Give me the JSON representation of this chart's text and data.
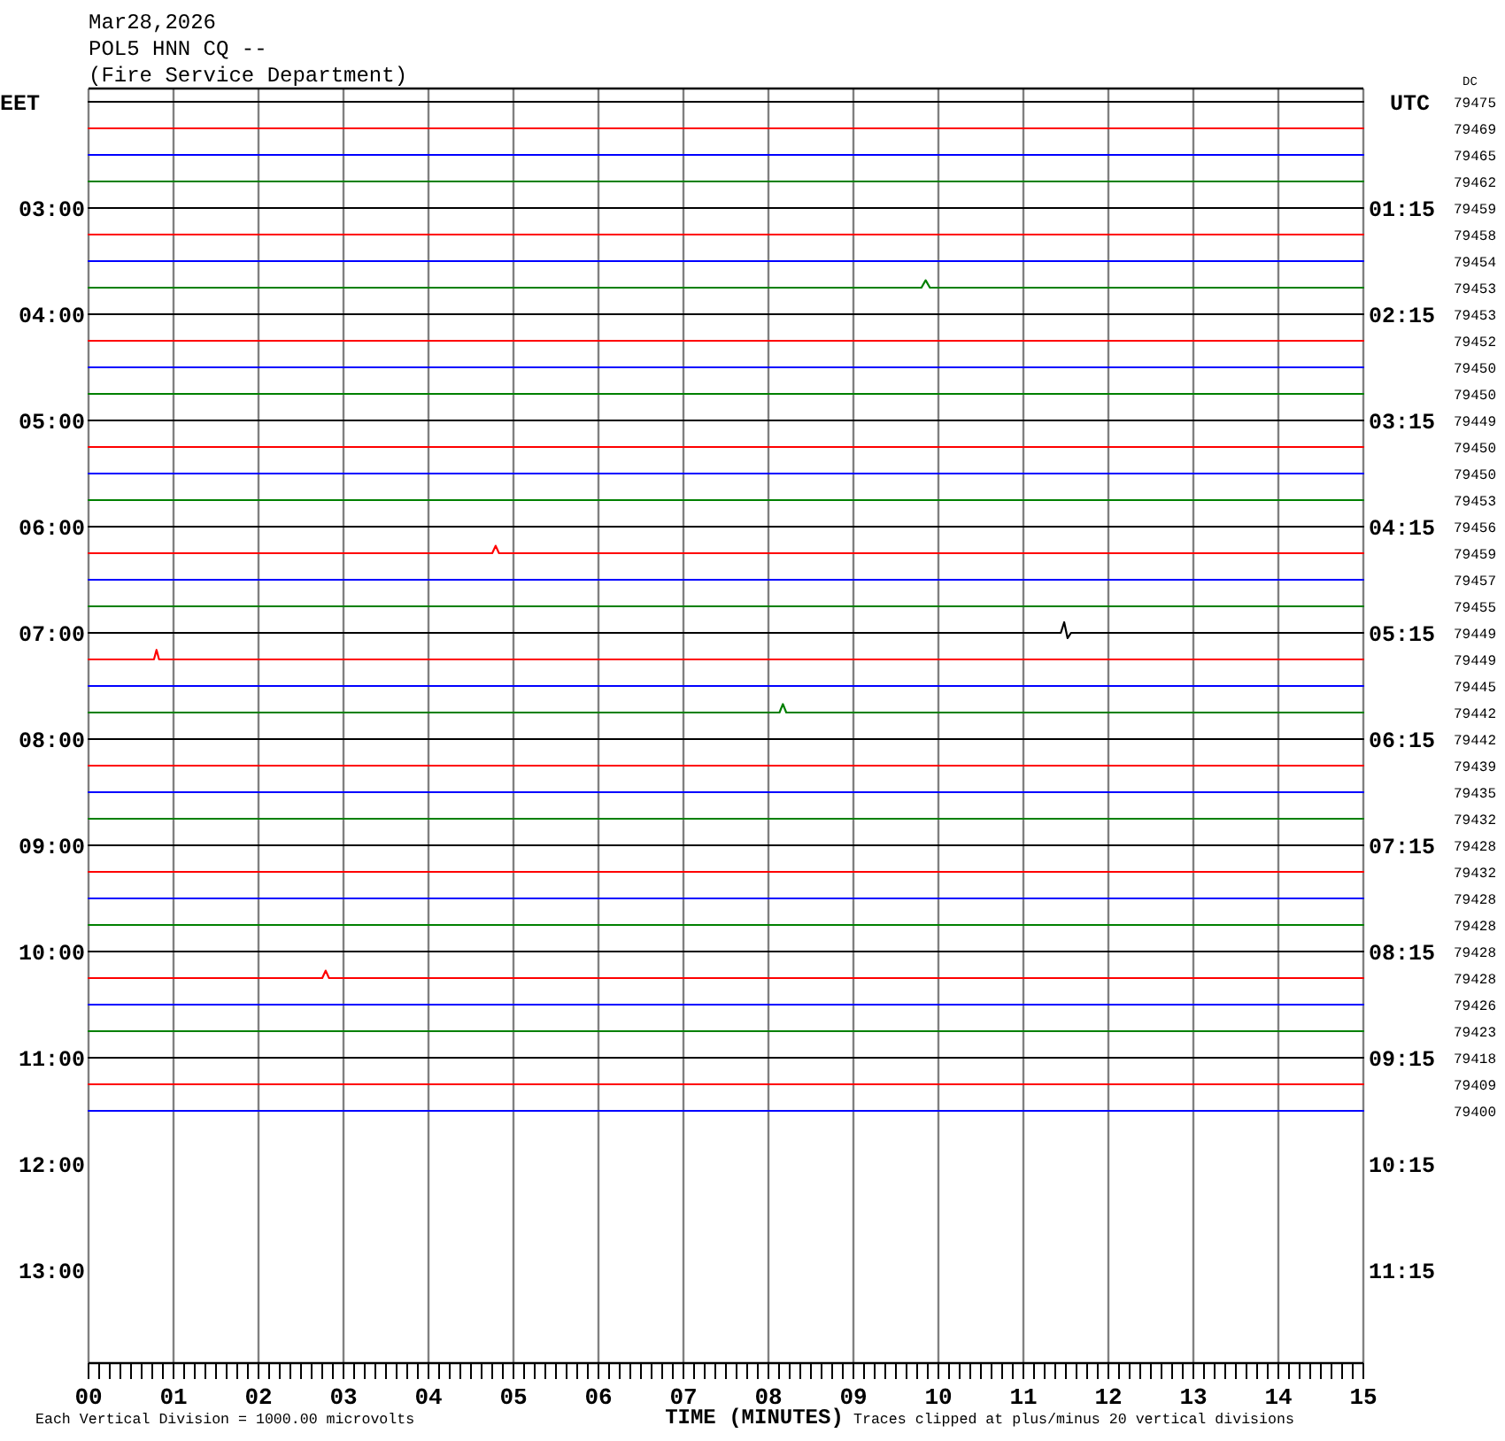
{
  "chart_data": {
    "type": "line",
    "title": "Mar28,2026",
    "subtitle": "POL5 HNN CQ --\n(Fire Service Department)",
    "xlabel": "TIME (MINUTES)",
    "ylabel": "EET",
    "y2label": "UTC",
    "x": [
      0,
      15
    ],
    "xlim": [
      0,
      15
    ],
    "ylim": [
      13.875,
      1.875
    ],
    "y2lim": [
      12.125,
      0.125
    ],
    "grid": "x",
    "xticks": [
      {
        "value": 0,
        "label": "00"
      },
      {
        "value": 0.125,
        "label": null
      },
      {
        "value": 0.25,
        "label": null
      },
      {
        "value": 0.375,
        "label": null
      },
      {
        "value": 0.5,
        "label": null
      },
      {
        "value": 0.625,
        "label": null
      },
      {
        "value": 0.75,
        "label": null
      },
      {
        "value": 0.875,
        "label": null
      },
      {
        "value": 1,
        "label": "01"
      },
      {
        "value": 1.125,
        "label": null
      },
      {
        "value": 1.25,
        "label": null
      },
      {
        "value": 1.375,
        "label": null
      },
      {
        "value": 1.5,
        "label": null
      },
      {
        "value": 1.625,
        "label": null
      },
      {
        "value": 1.75,
        "label": null
      },
      {
        "value": 1.875,
        "label": null
      },
      {
        "value": 2,
        "label": "02"
      },
      {
        "value": 2.125,
        "label": null
      },
      {
        "value": 2.25,
        "label": null
      },
      {
        "value": 2.375,
        "label": null
      },
      {
        "value": 2.5,
        "label": null
      },
      {
        "value": 2.625,
        "label": null
      },
      {
        "value": 2.75,
        "label": null
      },
      {
        "value": 2.875,
        "label": null
      },
      {
        "value": 3,
        "label": "03"
      },
      {
        "value": 3.125,
        "label": null
      },
      {
        "value": 3.25,
        "label": null
      },
      {
        "value": 3.375,
        "label": null
      },
      {
        "value": 3.5,
        "label": null
      },
      {
        "value": 3.625,
        "label": null
      },
      {
        "value": 3.75,
        "label": null
      },
      {
        "value": 3.875,
        "label": null
      },
      {
        "value": 4,
        "label": "04"
      },
      {
        "value": 4.125,
        "label": null
      },
      {
        "value": 4.25,
        "label": null
      },
      {
        "value": 4.375,
        "label": null
      },
      {
        "value": 4.5,
        "label": null
      },
      {
        "value": 4.625,
        "label": null
      },
      {
        "value": 4.75,
        "label": null
      },
      {
        "value": 4.875,
        "label": null
      },
      {
        "value": 5,
        "label": "05"
      },
      {
        "value": 5.125,
        "label": null
      },
      {
        "value": 5.25,
        "label": null
      },
      {
        "value": 5.375,
        "label": null
      },
      {
        "value": 5.5,
        "label": null
      },
      {
        "value": 5.625,
        "label": null
      },
      {
        "value": 5.75,
        "label": null
      },
      {
        "value": 5.875,
        "label": null
      },
      {
        "value": 6,
        "label": "06"
      },
      {
        "value": 6.125,
        "label": null
      },
      {
        "value": 6.25,
        "label": null
      },
      {
        "value": 6.375,
        "label": null
      },
      {
        "value": 6.5,
        "label": null
      },
      {
        "value": 6.625,
        "label": null
      },
      {
        "value": 6.75,
        "label": null
      },
      {
        "value": 6.875,
        "label": null
      },
      {
        "value": 7,
        "label": "07"
      },
      {
        "value": 7.125,
        "label": null
      },
      {
        "value": 7.25,
        "label": null
      },
      {
        "value": 7.375,
        "label": null
      },
      {
        "value": 7.5,
        "label": null
      },
      {
        "value": 7.625,
        "label": null
      },
      {
        "value": 7.75,
        "label": null
      },
      {
        "value": 7.875,
        "label": null
      },
      {
        "value": 8,
        "label": "08"
      },
      {
        "value": 8.125,
        "label": null
      },
      {
        "value": 8.25,
        "label": null
      },
      {
        "value": 8.375,
        "label": null
      },
      {
        "value": 8.5,
        "label": null
      },
      {
        "value": 8.625,
        "label": null
      },
      {
        "value": 8.75,
        "label": null
      },
      {
        "value": 8.875,
        "label": null
      },
      {
        "value": 9,
        "label": "09"
      },
      {
        "value": 9.125,
        "label": null
      },
      {
        "value": 9.25,
        "label": null
      },
      {
        "value": 9.375,
        "label": null
      },
      {
        "value": 9.5,
        "label": null
      },
      {
        "value": 9.625,
        "label": null
      },
      {
        "value": 9.75,
        "label": null
      },
      {
        "value": 9.875,
        "label": null
      },
      {
        "value": 10,
        "label": "10"
      },
      {
        "value": 10.125,
        "label": null
      },
      {
        "value": 10.25,
        "label": null
      },
      {
        "value": 10.375,
        "label": null
      },
      {
        "value": 10.5,
        "label": null
      },
      {
        "value": 10.625,
        "label": null
      },
      {
        "value": 10.75,
        "label": null
      },
      {
        "value": 10.875,
        "label": null
      },
      {
        "value": 11,
        "label": "11"
      },
      {
        "value": 11.125,
        "label": null
      },
      {
        "value": 11.25,
        "label": null
      },
      {
        "value": 11.375,
        "label": null
      },
      {
        "value": 11.5,
        "label": null
      },
      {
        "value": 11.625,
        "label": null
      },
      {
        "value": 11.75,
        "label": null
      },
      {
        "value": 11.875,
        "label": null
      },
      {
        "value": 12,
        "label": "12"
      },
      {
        "value": 12.125,
        "label": null
      },
      {
        "value": 12.25,
        "label": null
      },
      {
        "value": 12.375,
        "label": null
      },
      {
        "value": 12.5,
        "label": null
      },
      {
        "value": 12.625,
        "label": null
      },
      {
        "value": 12.75,
        "label": null
      },
      {
        "value": 12.875,
        "label": null
      },
      {
        "value": 13,
        "label": "13"
      },
      {
        "value": 13.125,
        "label": null
      },
      {
        "value": 13.25,
        "label": null
      },
      {
        "value": 13.375,
        "label": null
      },
      {
        "value": 13.5,
        "label": null
      },
      {
        "value": 13.625,
        "label": null
      },
      {
        "value": 13.75,
        "label": null
      },
      {
        "value": 13.875,
        "label": null
      },
      {
        "value": 14,
        "label": "14"
      },
      {
        "value": 14.125,
        "label": null
      },
      {
        "value": 14.25,
        "label": null
      },
      {
        "value": 14.375,
        "label": null
      },
      {
        "value": 14.5,
        "label": null
      },
      {
        "value": 14.625,
        "label": null
      },
      {
        "value": 14.75,
        "label": null
      },
      {
        "value": 14.875,
        "label": null
      },
      {
        "value": 15,
        "label": "15"
      }
    ],
    "yticks": [
      {
        "value": 3,
        "label": "03:00"
      },
      {
        "value": 4,
        "label": "04:00"
      },
      {
        "value": 5,
        "label": "05:00"
      },
      {
        "value": 6,
        "label": "06:00"
      },
      {
        "value": 7,
        "label": "07:00"
      },
      {
        "value": 8,
        "label": "08:00"
      },
      {
        "value": 9,
        "label": "09:00"
      },
      {
        "value": 10,
        "label": "10:00"
      },
      {
        "value": 11,
        "label": "11:00"
      },
      {
        "value": 12,
        "label": "12:00"
      },
      {
        "value": 13,
        "label": "13:00"
      }
    ],
    "y2ticks": [
      {
        "value": 1.25,
        "label": "01:15"
      },
      {
        "value": 2.25,
        "label": "02:15"
      },
      {
        "value": 3.25,
        "label": "03:15"
      },
      {
        "value": 4.25,
        "label": "04:15"
      },
      {
        "value": 5.25,
        "label": "05:15"
      },
      {
        "value": 6.25,
        "label": "06:15"
      },
      {
        "value": 7.25,
        "label": "07:15"
      },
      {
        "value": 8.25,
        "label": "08:15"
      },
      {
        "value": 9.25,
        "label": "09:15"
      },
      {
        "value": 10.25,
        "label": "10:15"
      },
      {
        "value": 11.25,
        "label": "11:15"
      }
    ],
    "series": [
      {
        "color": "#000000",
        "values": [
          2,
          2
        ]
      },
      {
        "color": "#ff0000",
        "values": [
          2.25,
          2.25
        ]
      },
      {
        "color": "#0000ff",
        "values": [
          2.5,
          2.5
        ]
      },
      {
        "color": "#008000",
        "values": [
          2.75,
          2.75
        ]
      },
      {
        "color": "#000000",
        "values": [
          3,
          3
        ]
      },
      {
        "color": "#ff0000",
        "values": [
          3.25,
          3.25
        ]
      },
      {
        "color": "#0000ff",
        "values": [
          3.5,
          3.5
        ]
      },
      {
        "color": "#008000",
        "x": [
          0,
          9.8,
          9.85,
          9.9,
          15
        ],
        "values": [
          3.75,
          3.75,
          3.68,
          3.75,
          3.75
        ]
      },
      {
        "color": "#000000",
        "values": [
          4,
          4
        ]
      },
      {
        "color": "#ff0000",
        "values": [
          4.25,
          4.25
        ]
      },
      {
        "color": "#0000ff",
        "values": [
          4.5,
          4.5
        ]
      },
      {
        "color": "#008000",
        "values": [
          4.75,
          4.75
        ]
      },
      {
        "color": "#000000",
        "values": [
          5,
          5
        ]
      },
      {
        "color": "#ff0000",
        "values": [
          5.25,
          5.25
        ]
      },
      {
        "color": "#0000ff",
        "values": [
          5.5,
          5.5
        ]
      },
      {
        "color": "#008000",
        "values": [
          5.75,
          5.75
        ]
      },
      {
        "color": "#000000",
        "values": [
          6,
          6
        ]
      },
      {
        "color": "#ff0000",
        "x": [
          0,
          4.75,
          4.79,
          4.83,
          15
        ],
        "values": [
          6.25,
          6.25,
          6.18,
          6.25,
          6.25
        ]
      },
      {
        "color": "#0000ff",
        "values": [
          6.5,
          6.5
        ]
      },
      {
        "color": "#008000",
        "values": [
          6.75,
          6.75
        ]
      },
      {
        "color": "#000000",
        "x": [
          0,
          11.44,
          11.48,
          11.52,
          11.56,
          15
        ],
        "values": [
          7,
          7,
          6.9,
          7.05,
          7,
          7
        ]
      },
      {
        "color": "#ff0000",
        "x": [
          0,
          0.77,
          0.8,
          0.83,
          15
        ],
        "values": [
          7.25,
          7.25,
          7.16,
          7.25,
          7.25
        ]
      },
      {
        "color": "#0000ff",
        "values": [
          7.5,
          7.5
        ]
      },
      {
        "color": "#008000",
        "x": [
          0,
          8.13,
          8.17,
          8.21,
          15
        ],
        "values": [
          7.75,
          7.75,
          7.67,
          7.75,
          7.75
        ]
      },
      {
        "color": "#000000",
        "values": [
          8,
          8
        ]
      },
      {
        "color": "#ff0000",
        "values": [
          8.25,
          8.25
        ]
      },
      {
        "color": "#0000ff",
        "values": [
          8.5,
          8.5
        ]
      },
      {
        "color": "#008000",
        "values": [
          8.75,
          8.75
        ]
      },
      {
        "color": "#000000",
        "values": [
          9,
          9
        ]
      },
      {
        "color": "#ff0000",
        "values": [
          9.25,
          9.25
        ]
      },
      {
        "color": "#0000ff",
        "values": [
          9.5,
          9.5
        ]
      },
      {
        "color": "#008000",
        "values": [
          9.75,
          9.75
        ]
      },
      {
        "color": "#000000",
        "values": [
          10,
          10
        ]
      },
      {
        "color": "#ff0000",
        "x": [
          0,
          2.75,
          2.79,
          2.83,
          15
        ],
        "values": [
          10.25,
          10.25,
          10.18,
          10.25,
          10.25
        ]
      },
      {
        "color": "#0000ff",
        "values": [
          10.5,
          10.5
        ]
      },
      {
        "color": "#008000",
        "values": [
          10.75,
          10.75
        ]
      },
      {
        "color": "#000000",
        "values": [
          11,
          11
        ]
      },
      {
        "color": "#ff0000",
        "values": [
          11.25,
          11.25
        ]
      },
      {
        "color": "#0000ff",
        "values": [
          11.5,
          11.5
        ]
      }
    ],
    "annotations": [
      "DC",
      "79475",
      "79469",
      "79465",
      "79462",
      "79459",
      "79458",
      "79454",
      "79453",
      "79453",
      "79452",
      "79450",
      "79450",
      "79449",
      "79450",
      "79450",
      "79453",
      "79456",
      "79459",
      "79457",
      "79455",
      "79449",
      "79449",
      "79445",
      "79442",
      "79442",
      "79439",
      "79435",
      "79432",
      "79428",
      "79432",
      "79428",
      "79428",
      "79428",
      "79428",
      "79426",
      "79423",
      "79418",
      "79409",
      "79400",
      "Each Vertical Division = 1000.00 microvolts",
      "Traces clipped at plus/minus 20 vertical divisions"
    ]
  }
}
